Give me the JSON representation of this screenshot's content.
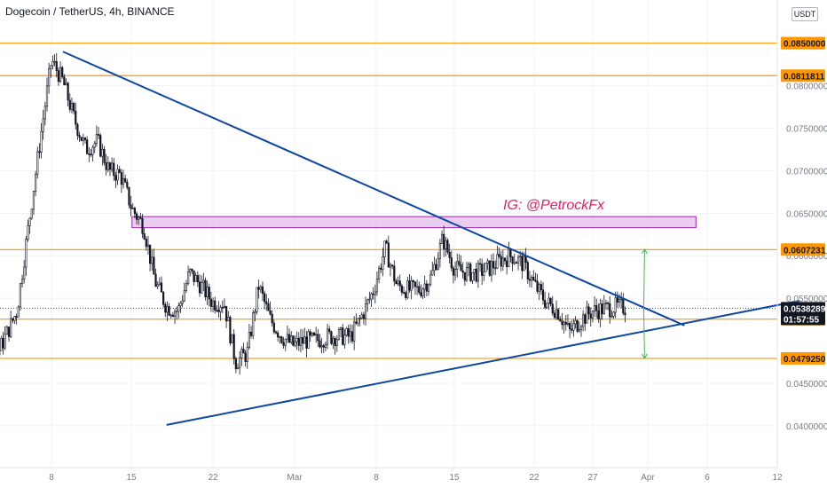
{
  "header": {
    "title": "Dogecoin / TetherUS, 4h, BINANCE",
    "currency_button": "USDT"
  },
  "colors": {
    "level_line": "#ff9800",
    "trendline": "#0d47a1",
    "zone_fill": "#e1bee7",
    "zone_border": "#9c27b0",
    "annotation": "#e91e63",
    "arrow": "#4caf50",
    "candle": "#131722",
    "price_badge": "#131722"
  },
  "annotation": {
    "text": "IG: @PetrockFx"
  },
  "chart_data": {
    "type": "candlestick",
    "x_ticks": [
      "8",
      "15",
      "22",
      "Mar",
      "8",
      "15",
      "22",
      "27",
      "Apr",
      "6",
      "12"
    ],
    "y_ticks": [
      {
        "value": 0.08,
        "label": "0.0800000"
      },
      {
        "value": 0.075,
        "label": "0.0750000"
      },
      {
        "value": 0.07,
        "label": "0.0700000"
      },
      {
        "value": 0.065,
        "label": "0.0650000"
      },
      {
        "value": 0.06,
        "label": "0.0600000"
      },
      {
        "value": 0.055,
        "label": "0.0550000"
      },
      {
        "value": 0.045,
        "label": "0.0450000"
      },
      {
        "value": 0.04,
        "label": "0.0400000"
      }
    ],
    "ylim": [
      0.0379,
      0.0882
    ],
    "horizontal_levels": [
      {
        "value": 0.085,
        "label": "0.0850000"
      },
      {
        "value": 0.0811811,
        "label": "0.0811811"
      },
      {
        "value": 0.0607231,
        "label": "0.0607231"
      },
      {
        "value": 0.0525425,
        "label": "0.0525425"
      },
      {
        "value": 0.047925,
        "label": "0.0479250"
      }
    ],
    "current_price": {
      "value": 0.0538289,
      "label": "0.0538289",
      "countdown": "01:57:55"
    },
    "resistance_zone": {
      "from": "Feb 15",
      "to": "Apr 5",
      "low": 0.0633,
      "high": 0.0646
    },
    "trendlines": [
      {
        "name": "descending",
        "start": [
          "Feb 9",
          0.084
        ],
        "end": [
          "Apr 4",
          0.0518
        ]
      },
      {
        "name": "ascending",
        "start": [
          "Feb 18",
          0.0401
        ],
        "end": [
          "Apr 14",
          0.0547
        ]
      }
    ],
    "projection_arrows": [
      {
        "from": [
          "Mar 31",
          0.0538
        ],
        "to": [
          "Apr 1",
          0.0608
        ]
      },
      {
        "from": [
          "Mar 31",
          0.0538
        ],
        "to": [
          "Apr 1",
          0.0479
        ]
      }
    ],
    "price_path": [
      [
        "Jan 29",
        0.038,
        0.054
      ],
      [
        "Jan 30",
        0.052,
        0.041
      ],
      [
        "Feb 1",
        0.043,
        0.045
      ],
      [
        "Feb 3",
        0.046,
        0.049
      ],
      [
        "Feb 5",
        0.048,
        0.059
      ],
      [
        "Feb 6",
        0.06,
        0.067
      ],
      [
        "Feb 7",
        0.069,
        0.078
      ],
      [
        "Feb 8",
        0.078,
        0.088
      ],
      [
        "Feb 9",
        0.082,
        0.079
      ],
      [
        "Feb 10",
        0.08,
        0.072
      ],
      [
        "Feb 11",
        0.074,
        0.071
      ],
      [
        "Feb 12",
        0.073,
        0.074
      ],
      [
        "Feb 13",
        0.071,
        0.069
      ],
      [
        "Feb 14",
        0.069,
        0.07
      ],
      [
        "Feb 15",
        0.067,
        0.064
      ],
      [
        "Feb 16",
        0.066,
        0.061
      ],
      [
        "Feb 17",
        0.058,
        0.056
      ],
      [
        "Feb 18",
        0.055,
        0.053
      ],
      [
        "Feb 19",
        0.053,
        0.054
      ],
      [
        "Feb 20",
        0.059,
        0.057
      ],
      [
        "Feb 21",
        0.058,
        0.055
      ],
      [
        "Feb 22",
        0.054,
        0.055
      ],
      [
        "Feb 23",
        0.056,
        0.053
      ],
      [
        "Feb 24",
        0.051,
        0.044
      ],
      [
        "Feb 25",
        0.045,
        0.052
      ],
      [
        "Feb 26",
        0.058,
        0.055
      ],
      [
        "Feb 27",
        0.053,
        0.052
      ],
      [
        "Feb 28",
        0.05,
        0.051
      ],
      [
        "Mar 1",
        0.05,
        0.049
      ],
      [
        "Mar 2",
        0.049,
        0.051
      ],
      [
        "Mar 3",
        0.05,
        0.05
      ],
      [
        "Mar 4",
        0.05,
        0.051
      ],
      [
        "Mar 5",
        0.05,
        0.051
      ],
      [
        "Mar 6",
        0.05,
        0.051
      ],
      [
        "Mar 7",
        0.053,
        0.053
      ],
      [
        "Mar 8",
        0.054,
        0.058
      ],
      [
        "Mar 9",
        0.064,
        0.058
      ],
      [
        "Mar 10",
        0.057,
        0.056
      ],
      [
        "Mar 11",
        0.056,
        0.056
      ],
      [
        "Mar 12",
        0.056,
        0.056
      ],
      [
        "Mar 13",
        0.057,
        0.058
      ],
      [
        "Mar 14",
        0.064,
        0.06
      ],
      [
        "Mar 15",
        0.06,
        0.057
      ],
      [
        "Mar 16",
        0.058,
        0.058
      ],
      [
        "Mar 17",
        0.058,
        0.058
      ],
      [
        "Mar 18",
        0.058,
        0.059
      ],
      [
        "Mar 19",
        0.06,
        0.059
      ],
      [
        "Mar 20",
        0.06,
        0.06
      ],
      [
        "Mar 21",
        0.06,
        0.058
      ],
      [
        "Mar 22",
        0.057,
        0.056
      ],
      [
        "Mar 23",
        0.055,
        0.054
      ],
      [
        "Mar 24",
        0.054,
        0.053
      ],
      [
        "Mar 25",
        0.051,
        0.051
      ],
      [
        "Mar 26",
        0.052,
        0.053
      ],
      [
        "Mar 27",
        0.053,
        0.054
      ],
      [
        "Mar 28",
        0.054,
        0.0535
      ],
      [
        "Mar 29",
        0.054,
        0.054
      ],
      [
        "Mar 30",
        0.054,
        0.0538
      ]
    ]
  }
}
